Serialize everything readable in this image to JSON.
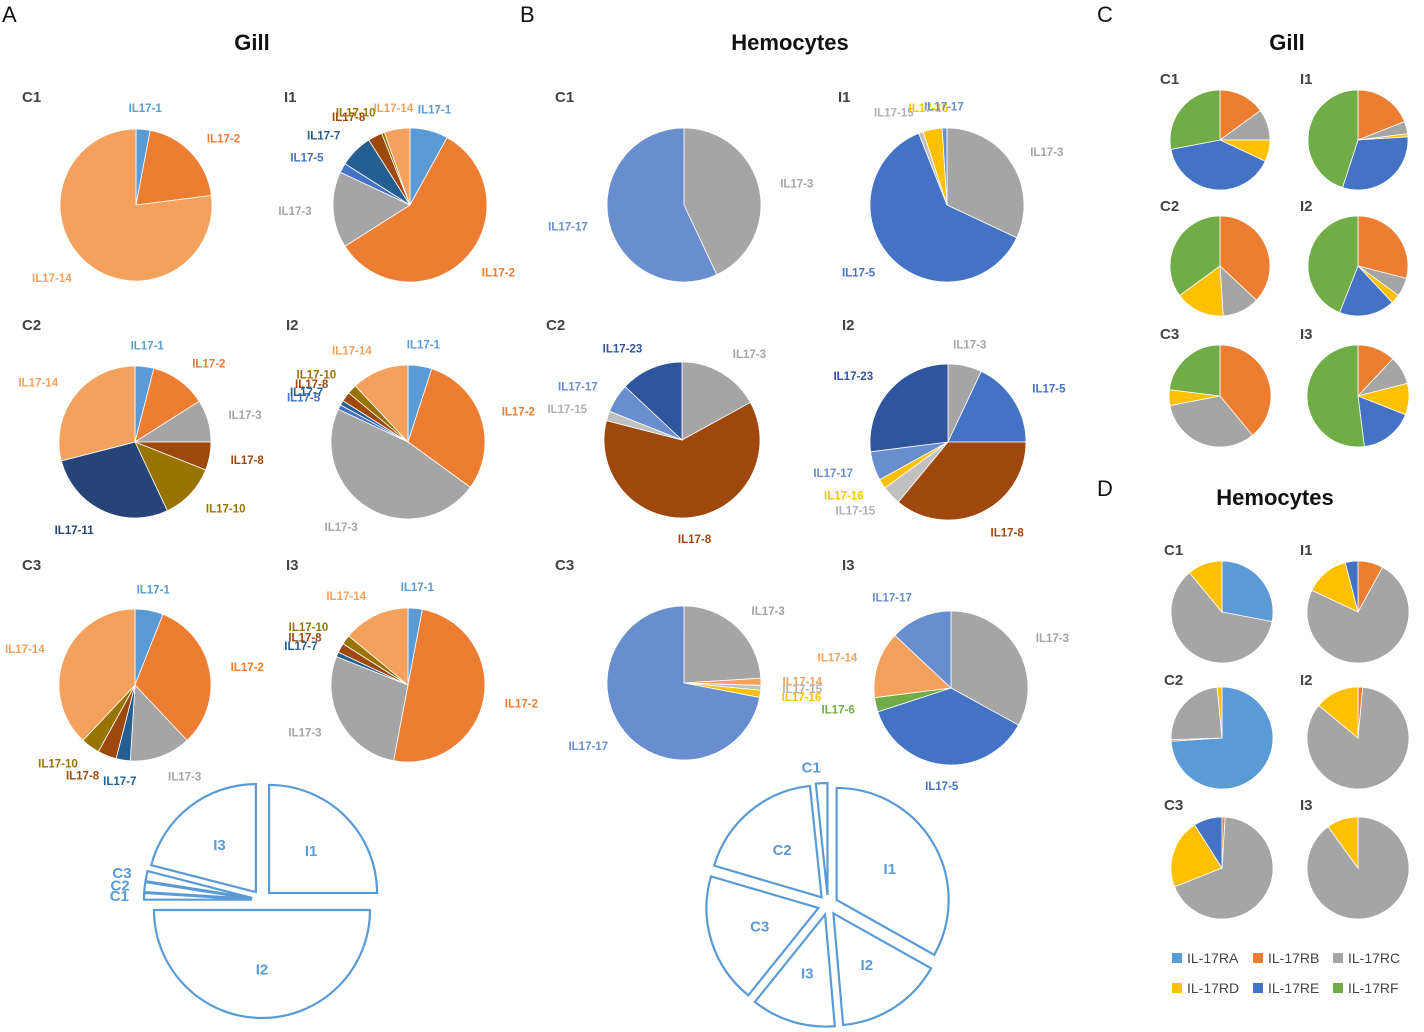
{
  "colors": {
    "IL17-1": "#5b9bd5",
    "IL17-2": "#ed7d31",
    "IL17-3": "#a5a5a5",
    "IL17-5": "#4472c4",
    "IL17-6": "#70ad47",
    "IL17-7": "#255e91",
    "IL17-8": "#9e480e",
    "IL17-10": "#997300",
    "IL17-11": "#264478",
    "IL17-14": "#f4a15d",
    "IL17-15": "#c0c0c0",
    "IL17-16": "#ffc000",
    "IL17-17": "#698ed0",
    "IL17-23": "#2f559c",
    "IL-17RA": "#5b9bd5",
    "IL-17RB": "#ed7d31",
    "IL-17RC": "#a5a5a5",
    "IL-17RD": "#ffc000",
    "IL-17RE": "#4472c4",
    "IL-17RF": "#70ad47",
    "overview": "#5b9bd5"
  },
  "panels": {
    "A": {
      "letter": "A",
      "title": "Gill"
    },
    "B": {
      "letter": "B",
      "title": "Hemocytes"
    },
    "C": {
      "letter": "C",
      "title": "Gill"
    },
    "D": {
      "letter": "D",
      "title": "Hemocytes"
    }
  },
  "legend": {
    "items": [
      "IL-17RA",
      "IL-17RB",
      "IL-17RC",
      "IL-17RD",
      "IL-17RE",
      "IL-17RF"
    ]
  },
  "chart_data": [
    {
      "id": "A-C1",
      "type": "pie",
      "title": "C1",
      "slices": [
        {
          "label": "IL17-1",
          "value": 3
        },
        {
          "label": "IL17-2",
          "value": 20
        },
        {
          "label": "IL17-14",
          "value": 77
        }
      ]
    },
    {
      "id": "A-I1",
      "type": "pie",
      "title": "I1",
      "slices": [
        {
          "label": "IL17-1",
          "value": 8
        },
        {
          "label": "IL17-2",
          "value": 58
        },
        {
          "label": "IL17-3",
          "value": 16
        },
        {
          "label": "IL17-5",
          "value": 2
        },
        {
          "label": "IL17-7",
          "value": 7
        },
        {
          "label": "IL17-8",
          "value": 3
        },
        {
          "label": "IL17-10",
          "value": 0.6
        },
        {
          "label": "IL17-14",
          "value": 5.4
        }
      ]
    },
    {
      "id": "A-C2",
      "type": "pie",
      "title": "C2",
      "slices": [
        {
          "label": "IL17-1",
          "value": 4
        },
        {
          "label": "IL17-2",
          "value": 12
        },
        {
          "label": "IL17-3",
          "value": 9
        },
        {
          "label": "IL17-8",
          "value": 6
        },
        {
          "label": "IL17-10",
          "value": 12
        },
        {
          "label": "IL17-11",
          "value": 28
        },
        {
          "label": "IL17-14",
          "value": 29
        }
      ]
    },
    {
      "id": "A-I2",
      "type": "pie",
      "title": "I2",
      "slices": [
        {
          "label": "IL17-1",
          "value": 5
        },
        {
          "label": "IL17-2",
          "value": 30
        },
        {
          "label": "IL17-3",
          "value": 47
        },
        {
          "label": "IL17-5",
          "value": 1
        },
        {
          "label": "IL17-7",
          "value": 1
        },
        {
          "label": "IL17-8",
          "value": 2
        },
        {
          "label": "IL17-10",
          "value": 2
        },
        {
          "label": "IL17-14",
          "value": 12
        }
      ]
    },
    {
      "id": "A-C3",
      "type": "pie",
      "title": "C3",
      "slices": [
        {
          "label": "IL17-1",
          "value": 6
        },
        {
          "label": "IL17-2",
          "value": 32
        },
        {
          "label": "IL17-3",
          "value": 13
        },
        {
          "label": "IL17-7",
          "value": 3
        },
        {
          "label": "IL17-8",
          "value": 4
        },
        {
          "label": "IL17-10",
          "value": 4
        },
        {
          "label": "IL17-14",
          "value": 38
        }
      ]
    },
    {
      "id": "A-I3",
      "type": "pie",
      "title": "I3",
      "slices": [
        {
          "label": "IL17-1",
          "value": 3
        },
        {
          "label": "IL17-2",
          "value": 50
        },
        {
          "label": "IL17-3",
          "value": 28
        },
        {
          "label": "IL17-7",
          "value": 1
        },
        {
          "label": "IL17-8",
          "value": 2
        },
        {
          "label": "IL17-10",
          "value": 2
        },
        {
          "label": "IL17-14",
          "value": 14
        }
      ]
    },
    {
      "id": "B-C1",
      "type": "pie",
      "title": "C1",
      "slices": [
        {
          "label": "IL17-3",
          "value": 43
        },
        {
          "label": "IL17-17",
          "value": 57
        }
      ]
    },
    {
      "id": "B-I1",
      "type": "pie",
      "title": "I1",
      "slices": [
        {
          "label": "IL17-3",
          "value": 32
        },
        {
          "label": "IL17-5",
          "value": 62
        },
        {
          "label": "IL17-15",
          "value": 1
        },
        {
          "label": "IL17-16",
          "value": 4
        },
        {
          "label": "IL17-17",
          "value": 1
        }
      ]
    },
    {
      "id": "B-C2",
      "type": "pie",
      "title": "C2",
      "slices": [
        {
          "label": "IL17-3",
          "value": 17
        },
        {
          "label": "IL17-8",
          "value": 62
        },
        {
          "label": "IL17-15",
          "value": 2
        },
        {
          "label": "IL17-17",
          "value": 6
        },
        {
          "label": "IL17-23",
          "value": 13
        }
      ]
    },
    {
      "id": "B-I2",
      "type": "pie",
      "title": "I2",
      "slices": [
        {
          "label": "IL17-3",
          "value": 7
        },
        {
          "label": "IL17-5",
          "value": 18
        },
        {
          "label": "IL17-8",
          "value": 36
        },
        {
          "label": "IL17-15",
          "value": 4
        },
        {
          "label": "IL17-16",
          "value": 2
        },
        {
          "label": "IL17-17",
          "value": 6
        },
        {
          "label": "IL17-23",
          "value": 27
        }
      ]
    },
    {
      "id": "B-C3",
      "type": "pie",
      "title": "C3",
      "slices": [
        {
          "label": "IL17-3",
          "value": 24
        },
        {
          "label": "IL17-14",
          "value": 1.5
        },
        {
          "label": "IL17-15",
          "value": 1
        },
        {
          "label": "IL17-16",
          "value": 1.5
        },
        {
          "label": "IL17-17",
          "value": 72
        }
      ]
    },
    {
      "id": "B-I3",
      "type": "pie",
      "title": "I3",
      "slices": [
        {
          "label": "IL17-3",
          "value": 33
        },
        {
          "label": "IL17-5",
          "value": 37
        },
        {
          "label": "IL17-6",
          "value": 3
        },
        {
          "label": "IL17-14",
          "value": 14
        },
        {
          "label": "IL17-17",
          "value": 13
        }
      ]
    },
    {
      "id": "A-overview",
      "type": "pie",
      "title": "",
      "slices": [
        {
          "label": "I1",
          "value": 25
        },
        {
          "label": "I2",
          "value": 50
        },
        {
          "label": "C1",
          "value": 1
        },
        {
          "label": "C2",
          "value": 1.5
        },
        {
          "label": "C3",
          "value": 1.5
        },
        {
          "label": "I3",
          "value": 21
        }
      ]
    },
    {
      "id": "B-overview",
      "type": "pie",
      "title": "",
      "slices": [
        {
          "label": "I1",
          "value": 30
        },
        {
          "label": "I2",
          "value": 14
        },
        {
          "label": "I3",
          "value": 11
        },
        {
          "label": "C3",
          "value": 17
        },
        {
          "label": "C2",
          "value": 17
        },
        {
          "label": "C1",
          "value": 1.5
        }
      ]
    },
    {
      "id": "C-C1",
      "type": "pie",
      "title": "C1",
      "slices": [
        {
          "label": "IL-17RB",
          "value": 15
        },
        {
          "label": "IL-17RC",
          "value": 10
        },
        {
          "label": "IL-17RD",
          "value": 7
        },
        {
          "label": "IL-17RE",
          "value": 40
        },
        {
          "label": "IL-17RF",
          "value": 28
        }
      ]
    },
    {
      "id": "C-I1",
      "type": "pie",
      "title": "I1",
      "slices": [
        {
          "label": "IL-17RB",
          "value": 19
        },
        {
          "label": "IL-17RC",
          "value": 4
        },
        {
          "label": "IL-17RD",
          "value": 1
        },
        {
          "label": "IL-17RE",
          "value": 31
        },
        {
          "label": "IL-17RF",
          "value": 45
        }
      ]
    },
    {
      "id": "C-C2",
      "type": "pie",
      "title": "C2",
      "slices": [
        {
          "label": "IL-17RB",
          "value": 37
        },
        {
          "label": "IL-17RC",
          "value": 12
        },
        {
          "label": "IL-17RD",
          "value": 16
        },
        {
          "label": "IL-17RF",
          "value": 35
        }
      ]
    },
    {
      "id": "C-I2",
      "type": "pie",
      "title": "I2",
      "slices": [
        {
          "label": "IL-17RB",
          "value": 29
        },
        {
          "label": "IL-17RC",
          "value": 6
        },
        {
          "label": "IL-17RD",
          "value": 3
        },
        {
          "label": "IL-17RE",
          "value": 18
        },
        {
          "label": "IL-17RF",
          "value": 44
        }
      ]
    },
    {
      "id": "C-C3",
      "type": "pie",
      "title": "C3",
      "slices": [
        {
          "label": "IL-17RB",
          "value": 39
        },
        {
          "label": "IL-17RC",
          "value": 33
        },
        {
          "label": "IL-17RD",
          "value": 5
        },
        {
          "label": "IL-17RF",
          "value": 23
        }
      ]
    },
    {
      "id": "C-I3",
      "type": "pie",
      "title": "I3",
      "slices": [
        {
          "label": "IL-17RB",
          "value": 12
        },
        {
          "label": "IL-17RC",
          "value": 9
        },
        {
          "label": "IL-17RD",
          "value": 10
        },
        {
          "label": "IL-17RE",
          "value": 17
        },
        {
          "label": "IL-17RF",
          "value": 52
        }
      ]
    },
    {
      "id": "D-C1",
      "type": "pie",
      "title": "C1",
      "slices": [
        {
          "label": "IL-17RA",
          "value": 28
        },
        {
          "label": "IL-17RC",
          "value": 61
        },
        {
          "label": "IL-17RD",
          "value": 11
        }
      ]
    },
    {
      "id": "D-I1",
      "type": "pie",
      "title": "I1",
      "slices": [
        {
          "label": "IL-17RB",
          "value": 8
        },
        {
          "label": "IL-17RC",
          "value": 74
        },
        {
          "label": "IL-17RD",
          "value": 14
        },
        {
          "label": "IL-17RE",
          "value": 4
        }
      ]
    },
    {
      "id": "D-C2",
      "type": "pie",
      "title": "C2",
      "slices": [
        {
          "label": "IL-17RA",
          "value": 74
        },
        {
          "label": "IL-17RB",
          "value": 0.5
        },
        {
          "label": "IL-17RC",
          "value": 24
        },
        {
          "label": "IL-17RD",
          "value": 1.5
        }
      ]
    },
    {
      "id": "D-I2",
      "type": "pie",
      "title": "I2",
      "slices": [
        {
          "label": "IL-17RB",
          "value": 1.5
        },
        {
          "label": "IL-17RC",
          "value": 84.5
        },
        {
          "label": "IL-17RD",
          "value": 14
        }
      ]
    },
    {
      "id": "D-C3",
      "type": "pie",
      "title": "C3",
      "slices": [
        {
          "label": "IL-17RB",
          "value": 1
        },
        {
          "label": "IL-17RC",
          "value": 68
        },
        {
          "label": "IL-17RD",
          "value": 22
        },
        {
          "label": "IL-17RE",
          "value": 9
        }
      ]
    },
    {
      "id": "D-I3",
      "type": "pie",
      "title": "I3",
      "slices": [
        {
          "label": "IL-17RC",
          "value": 90
        },
        {
          "label": "IL-17RD",
          "value": 10
        }
      ]
    }
  ]
}
